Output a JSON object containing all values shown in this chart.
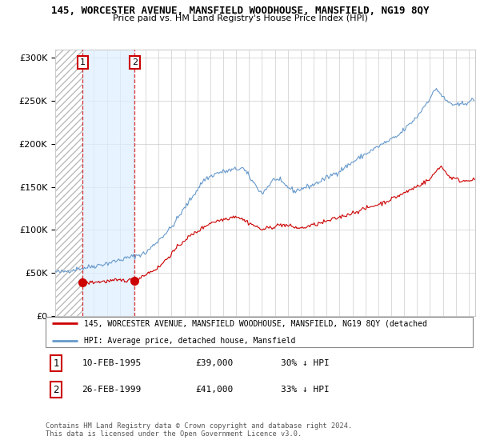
{
  "title": "145, WORCESTER AVENUE, MANSFIELD WOODHOUSE, MANSFIELD, NG19 8QY",
  "subtitle": "Price paid vs. HM Land Registry's House Price Index (HPI)",
  "legend_line1": "145, WORCESTER AVENUE, MANSFIELD WOODHOUSE, MANSFIELD, NG19 8QY (detached",
  "legend_line2": "HPI: Average price, detached house, Mansfield",
  "footer": "Contains HM Land Registry data © Crown copyright and database right 2024.\nThis data is licensed under the Open Government Licence v3.0.",
  "purchase1_date": "10-FEB-1995",
  "purchase1_price": 39000,
  "purchase1_hpi": "30% ↓ HPI",
  "purchase2_date": "26-FEB-1999",
  "purchase2_price": 41000,
  "purchase2_hpi": "33% ↓ HPI",
  "purchase1_x": 1995.12,
  "purchase2_x": 1999.15,
  "ylim": [
    0,
    310000
  ],
  "xlim": [
    1993.0,
    2025.5
  ],
  "hpi_color": "#6699cc",
  "price_color": "#cc0000",
  "shaded_blue_color": "#ddeeff",
  "background_color": "#ffffff",
  "grid_color": "#cccccc",
  "hatch_region_end": 1995.12,
  "blue_shade_start": 1995.12,
  "blue_shade_end": 1999.15
}
